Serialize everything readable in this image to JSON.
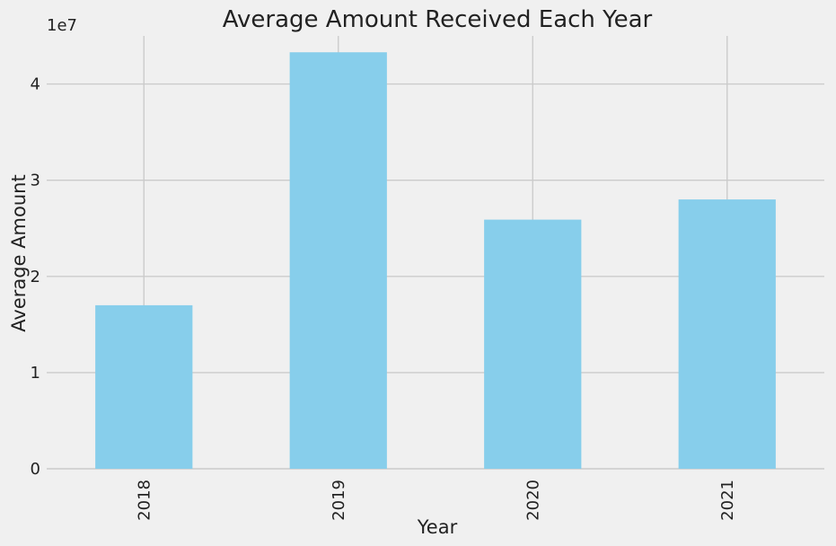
{
  "chart_data": {
    "type": "bar",
    "title": "Average Amount Received Each Year",
    "xlabel": "Year",
    "ylabel": "Average Amount",
    "offset_label": "1e7",
    "categories": [
      "2018",
      "2019",
      "2020",
      "2021"
    ],
    "values": [
      17000000,
      43300000,
      25900000,
      28000000
    ],
    "ylim": [
      0,
      45000000
    ],
    "yticks": [
      0,
      10000000,
      20000000,
      30000000,
      40000000
    ],
    "ytick_labels": [
      "0",
      "1",
      "2",
      "3",
      "4"
    ],
    "grid": true,
    "bar_color": "#87ceeb"
  }
}
